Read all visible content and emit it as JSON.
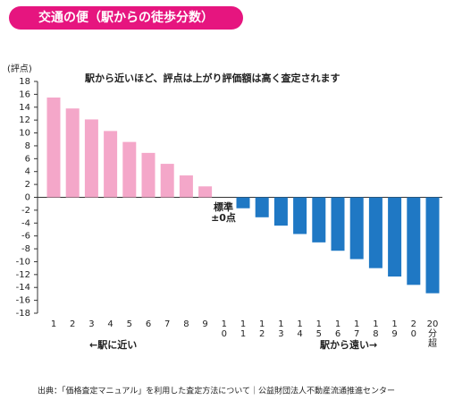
{
  "chart_data": {
    "type": "bar",
    "title": "交通の便（駅からの徒歩分数）",
    "y_axis_label": "(評点)",
    "annotation": "駅から近いほど、評点は上がり評価額は高く査定されます",
    "baseline_label": [
      "標準",
      "±0点"
    ],
    "near_label": "←駅に近い",
    "far_label": "駅から遠い→",
    "source": "出典：「価格査定マニュアル」を利用した査定方法について｜公益財団法人不動産流通推進センター",
    "categories": [
      "1",
      "2",
      "3",
      "4",
      "5",
      "6",
      "7",
      "8",
      "9",
      "10",
      "11",
      "12",
      "13",
      "14",
      "15",
      "16",
      "17",
      "18",
      "19",
      "20",
      "20分超"
    ],
    "values": [
      15.5,
      13.8,
      12.1,
      10.3,
      8.6,
      6.9,
      5.2,
      3.4,
      1.7,
      0,
      -1.7,
      -3.1,
      -4.4,
      -5.7,
      -7.0,
      -8.3,
      -9.6,
      -11.0,
      -12.3,
      -13.6,
      -14.9
    ],
    "positive_color": "#f4a7c9",
    "negative_color": "#1f78c4",
    "ylim": [
      -18,
      18
    ],
    "yticks": [
      -18,
      -16,
      -14,
      -12,
      -10,
      -8,
      -6,
      -4,
      -2,
      0,
      2,
      4,
      6,
      8,
      10,
      12,
      14,
      16,
      18
    ]
  }
}
